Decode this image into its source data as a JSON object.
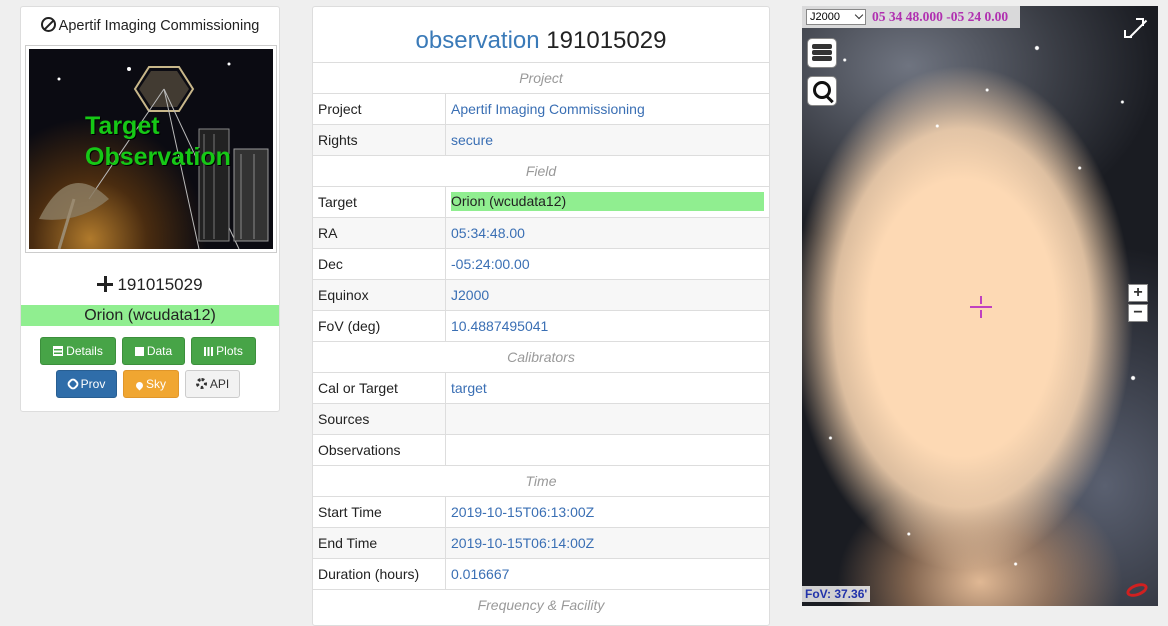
{
  "card": {
    "title": "Apertif Imaging Commissioning",
    "thumbnail_text_line1": "Target",
    "thumbnail_text_line2": "Observation",
    "obs_id": "191015029",
    "target": "Orion (wcudata12)",
    "buttons": {
      "details": "Details",
      "data": "Data",
      "plots": "Plots",
      "prov": "Prov",
      "sky": "Sky",
      "api": "API"
    }
  },
  "panel": {
    "title_keyword": "observation",
    "title_id": "191015029",
    "rows": [
      {
        "type": "section",
        "label": "Project"
      },
      {
        "type": "field",
        "label": "Project",
        "value": "Apertif Imaging Commissioning"
      },
      {
        "type": "field",
        "label": "Rights",
        "value": "secure"
      },
      {
        "type": "section",
        "label": "Field"
      },
      {
        "type": "field",
        "label": "Target",
        "value": "Orion (wcudata12)",
        "highlight": true
      },
      {
        "type": "field",
        "label": "RA",
        "value": "05:34:48.00"
      },
      {
        "type": "field",
        "label": "Dec",
        "value": "-05:24:00.00"
      },
      {
        "type": "field",
        "label": "Equinox",
        "value": "J2000"
      },
      {
        "type": "field",
        "label": "FoV (deg)",
        "value": "10.4887495041"
      },
      {
        "type": "section",
        "label": "Calibrators"
      },
      {
        "type": "field",
        "label": "Cal or Target",
        "value": "target"
      },
      {
        "type": "field",
        "label": "Sources",
        "value": ""
      },
      {
        "type": "field",
        "label": "Observations",
        "value": ""
      },
      {
        "type": "section",
        "label": "Time"
      },
      {
        "type": "field",
        "label": "Start Time",
        "value": "2019-10-15T06:13:00Z"
      },
      {
        "type": "field",
        "label": "End Time",
        "value": "2019-10-15T06:14:00Z"
      },
      {
        "type": "field",
        "label": "Duration (hours)",
        "value": "0.016667"
      },
      {
        "type": "section",
        "label": "Frequency & Facility"
      }
    ]
  },
  "sky": {
    "frame": "J2000",
    "coords": "05 34 48.000 -05 24 0.00",
    "fov": "FoV: 37.36'",
    "zoom_in": "+",
    "zoom_out": "−",
    "icons": [
      "layers-icon",
      "search-icon",
      "expand-icon",
      "galaxy-icon",
      "reticle-icon"
    ]
  },
  "colors": {
    "link": "#3a6fb4",
    "highlight": "#90ee90",
    "btn_green": "#47a447",
    "btn_blue": "#2f6da9",
    "btn_orange": "#f0a631",
    "coord_text": "#b030b0"
  }
}
